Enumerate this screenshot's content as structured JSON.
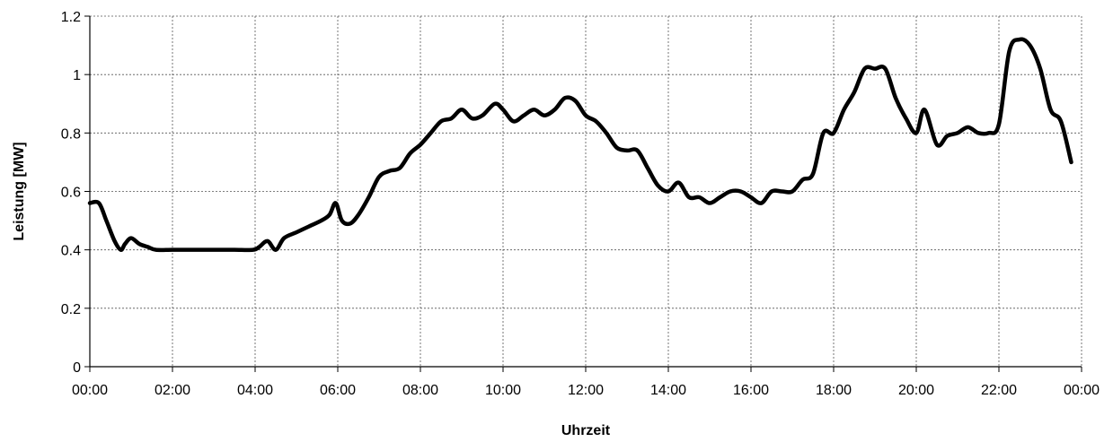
{
  "chart_data": {
    "type": "line",
    "title": "",
    "xlabel": "Uhrzeit",
    "ylabel": "Leistung [MW]",
    "xlim": [
      0,
      24
    ],
    "ylim": [
      0,
      1.2
    ],
    "grid": true,
    "legend": "none",
    "x_ticks": [
      {
        "value": 0,
        "label": "00:00"
      },
      {
        "value": 2,
        "label": "02:00"
      },
      {
        "value": 4,
        "label": "04:00"
      },
      {
        "value": 6,
        "label": "06:00"
      },
      {
        "value": 8,
        "label": "08:00"
      },
      {
        "value": 10,
        "label": "10:00"
      },
      {
        "value": 12,
        "label": "12:00"
      },
      {
        "value": 14,
        "label": "14:00"
      },
      {
        "value": 16,
        "label": "16:00"
      },
      {
        "value": 18,
        "label": "18:00"
      },
      {
        "value": 20,
        "label": "20:00"
      },
      {
        "value": 22,
        "label": "22:00"
      },
      {
        "value": 24,
        "label": "00:00"
      }
    ],
    "y_ticks": [
      {
        "value": 0,
        "label": "0"
      },
      {
        "value": 0.2,
        "label": "0.2"
      },
      {
        "value": 0.4,
        "label": "0.4"
      },
      {
        "value": 0.6,
        "label": "0.6"
      },
      {
        "value": 0.8,
        "label": "0.8"
      },
      {
        "value": 1.0,
        "label": "1"
      },
      {
        "value": 1.2,
        "label": "1.2"
      }
    ],
    "line_color": "#000000",
    "series": [
      {
        "x": [
          0,
          0.22,
          0.4,
          0.6,
          0.75,
          0.85,
          1.0,
          1.2,
          1.4,
          1.6,
          2,
          2.5,
          3,
          3.5,
          3.95,
          4.1,
          4.3,
          4.5,
          4.7,
          5,
          5.3,
          5.6,
          5.8,
          5.95,
          6.1,
          6.3,
          6.5,
          6.75,
          7,
          7.25,
          7.5,
          7.75,
          8,
          8.25,
          8.5,
          8.75,
          9,
          9.25,
          9.5,
          9.8,
          10,
          10.25,
          10.5,
          10.75,
          11,
          11.25,
          11.5,
          11.75,
          12,
          12.25,
          12.5,
          12.75,
          13,
          13.25,
          13.5,
          13.75,
          14,
          14.25,
          14.5,
          14.75,
          15,
          15.25,
          15.5,
          15.75,
          16,
          16.25,
          16.5,
          16.75,
          17,
          17.25,
          17.5,
          17.75,
          18,
          18.25,
          18.5,
          18.75,
          19,
          19.25,
          19.5,
          19.75,
          20,
          20.2,
          20.5,
          20.75,
          21,
          21.25,
          21.5,
          21.75,
          22,
          22.25,
          22.5,
          22.75,
          23,
          23.25,
          23.5,
          23.75
        ],
        "y": [
          0.56,
          0.56,
          0.5,
          0.43,
          0.4,
          0.42,
          0.44,
          0.42,
          0.41,
          0.4,
          0.4,
          0.4,
          0.4,
          0.4,
          0.4,
          0.41,
          0.43,
          0.4,
          0.44,
          0.46,
          0.48,
          0.5,
          0.52,
          0.56,
          0.5,
          0.49,
          0.52,
          0.58,
          0.65,
          0.67,
          0.68,
          0.73,
          0.76,
          0.8,
          0.84,
          0.85,
          0.88,
          0.85,
          0.86,
          0.9,
          0.88,
          0.84,
          0.86,
          0.88,
          0.86,
          0.88,
          0.92,
          0.91,
          0.86,
          0.84,
          0.8,
          0.75,
          0.74,
          0.74,
          0.68,
          0.62,
          0.6,
          0.63,
          0.58,
          0.58,
          0.56,
          0.58,
          0.6,
          0.6,
          0.58,
          0.56,
          0.6,
          0.6,
          0.6,
          0.64,
          0.66,
          0.8,
          0.8,
          0.88,
          0.94,
          1.02,
          1.02,
          1.02,
          0.92,
          0.85,
          0.8,
          0.88,
          0.76,
          0.79,
          0.8,
          0.82,
          0.8,
          0.8,
          0.83,
          1.08,
          1.12,
          1.1,
          1.02,
          0.88,
          0.84,
          0.7
        ]
      }
    ]
  }
}
